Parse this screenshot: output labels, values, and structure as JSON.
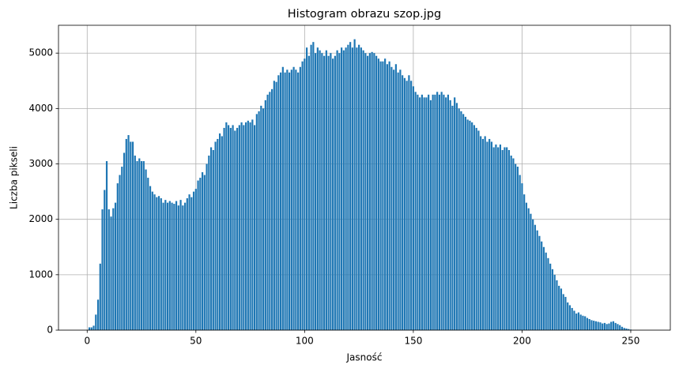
{
  "chart_data": {
    "type": "bar",
    "title": "Histogram obrazu szop.jpg",
    "x_label": "Jasność",
    "y_label": "Liczba pikseli",
    "color": "#1f77b4",
    "grid": true,
    "x": [
      0,
      1,
      2,
      3,
      4,
      5,
      6,
      7,
      8,
      9,
      10,
      11,
      12,
      13,
      14,
      15,
      16,
      17,
      18,
      19,
      20,
      21,
      22,
      23,
      24,
      25,
      26,
      27,
      28,
      29,
      30,
      31,
      32,
      33,
      34,
      35,
      36,
      37,
      38,
      39,
      40,
      41,
      42,
      43,
      44,
      45,
      46,
      47,
      48,
      49,
      50,
      51,
      52,
      53,
      54,
      55,
      56,
      57,
      58,
      59,
      60,
      61,
      62,
      63,
      64,
      65,
      66,
      67,
      68,
      69,
      70,
      71,
      72,
      73,
      74,
      75,
      76,
      77,
      78,
      79,
      80,
      81,
      82,
      83,
      84,
      85,
      86,
      87,
      88,
      89,
      90,
      91,
      92,
      93,
      94,
      95,
      96,
      97,
      98,
      99,
      100,
      101,
      102,
      103,
      104,
      105,
      106,
      107,
      108,
      109,
      110,
      111,
      112,
      113,
      114,
      115,
      116,
      117,
      118,
      119,
      120,
      121,
      122,
      123,
      124,
      125,
      126,
      127,
      128,
      129,
      130,
      131,
      132,
      133,
      134,
      135,
      136,
      137,
      138,
      139,
      140,
      141,
      142,
      143,
      144,
      145,
      146,
      147,
      148,
      149,
      150,
      151,
      152,
      153,
      154,
      155,
      156,
      157,
      158,
      159,
      160,
      161,
      162,
      163,
      164,
      165,
      166,
      167,
      168,
      169,
      170,
      171,
      172,
      173,
      174,
      175,
      176,
      177,
      178,
      179,
      180,
      181,
      182,
      183,
      184,
      185,
      186,
      187,
      188,
      189,
      190,
      191,
      192,
      193,
      194,
      195,
      196,
      197,
      198,
      199,
      200,
      201,
      202,
      203,
      204,
      205,
      206,
      207,
      208,
      209,
      210,
      211,
      212,
      213,
      214,
      215,
      216,
      217,
      218,
      219,
      220,
      221,
      222,
      223,
      224,
      225,
      226,
      227,
      228,
      229,
      230,
      231,
      232,
      233,
      234,
      235,
      236,
      237,
      238,
      239,
      240,
      241,
      242,
      243,
      244,
      245,
      246,
      247,
      248,
      249,
      250,
      251,
      252,
      253,
      254,
      255
    ],
    "values": [
      0,
      50,
      50,
      80,
      280,
      550,
      1200,
      2180,
      2530,
      3050,
      2180,
      2050,
      2200,
      2300,
      2650,
      2800,
      2950,
      3200,
      3450,
      3520,
      3400,
      3400,
      3150,
      3050,
      3100,
      3050,
      3050,
      2900,
      2750,
      2600,
      2500,
      2450,
      2400,
      2420,
      2380,
      2300,
      2350,
      2300,
      2330,
      2300,
      2280,
      2330,
      2250,
      2350,
      2250,
      2300,
      2380,
      2450,
      2400,
      2500,
      2550,
      2700,
      2750,
      2850,
      2800,
      3000,
      3150,
      3300,
      3250,
      3400,
      3450,
      3550,
      3500,
      3650,
      3750,
      3700,
      3650,
      3700,
      3600,
      3650,
      3700,
      3750,
      3700,
      3750,
      3780,
      3750,
      3800,
      3700,
      3900,
      3950,
      4050,
      4000,
      4150,
      4250,
      4300,
      4350,
      4500,
      4480,
      4600,
      4650,
      4750,
      4650,
      4700,
      4650,
      4700,
      4750,
      4700,
      4650,
      4750,
      4850,
      4900,
      5100,
      4950,
      5150,
      5200,
      5000,
      5100,
      5050,
      5000,
      4950,
      5050,
      4950,
      5000,
      4900,
      4950,
      5050,
      5000,
      5100,
      5050,
      5100,
      5150,
      5200,
      5100,
      5250,
      5100,
      5150,
      5100,
      5050,
      5000,
      4950,
      5000,
      5020,
      5000,
      4950,
      4900,
      4850,
      4850,
      4900,
      4800,
      4850,
      4750,
      4700,
      4800,
      4650,
      4700,
      4600,
      4550,
      4500,
      4600,
      4500,
      4400,
      4300,
      4250,
      4200,
      4250,
      4200,
      4200,
      4250,
      4150,
      4250,
      4250,
      4300,
      4250,
      4300,
      4250,
      4200,
      4250,
      4150,
      4050,
      4200,
      4100,
      4000,
      3950,
      3900,
      3850,
      3800,
      3780,
      3750,
      3700,
      3650,
      3600,
      3500,
      3450,
      3500,
      3400,
      3450,
      3400,
      3300,
      3350,
      3300,
      3350,
      3250,
      3300,
      3300,
      3250,
      3150,
      3100,
      3000,
      2950,
      2800,
      2650,
      2450,
      2300,
      2200,
      2100,
      2000,
      1900,
      1800,
      1700,
      1600,
      1500,
      1400,
      1300,
      1200,
      1100,
      1000,
      900,
      800,
      750,
      650,
      600,
      500,
      450,
      400,
      350,
      300,
      320,
      280,
      260,
      250,
      220,
      200,
      180,
      170,
      160,
      150,
      140,
      120,
      130,
      110,
      120,
      150,
      160,
      130,
      110,
      90,
      60,
      40,
      30,
      20,
      10,
      0,
      0,
      0,
      0,
      0
    ],
    "xlim": [
      -13.19,
      268.19
    ],
    "xticks": [
      0,
      50,
      100,
      150,
      200,
      250
    ],
    "ylim": [
      0,
      5502
    ],
    "yticks": [
      0,
      1000,
      2000,
      3000,
      4000,
      5000
    ]
  }
}
